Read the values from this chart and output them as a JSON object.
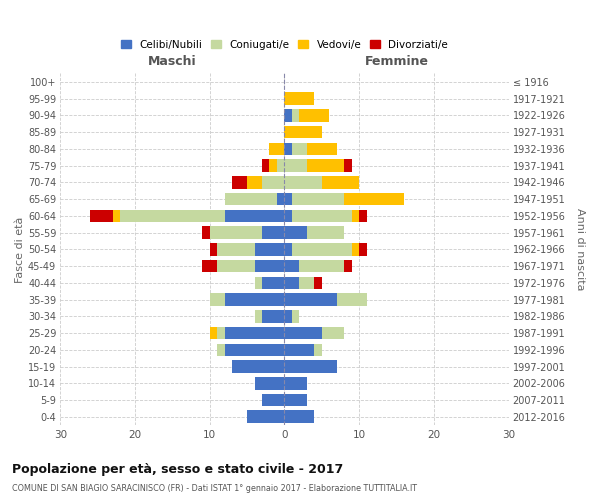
{
  "age_groups": [
    "0-4",
    "5-9",
    "10-14",
    "15-19",
    "20-24",
    "25-29",
    "30-34",
    "35-39",
    "40-44",
    "45-49",
    "50-54",
    "55-59",
    "60-64",
    "65-69",
    "70-74",
    "75-79",
    "80-84",
    "85-89",
    "90-94",
    "95-99",
    "100+"
  ],
  "birth_years": [
    "2012-2016",
    "2007-2011",
    "2002-2006",
    "1997-2001",
    "1992-1996",
    "1987-1991",
    "1982-1986",
    "1977-1981",
    "1972-1976",
    "1967-1971",
    "1962-1966",
    "1957-1961",
    "1952-1956",
    "1947-1951",
    "1942-1946",
    "1937-1941",
    "1932-1936",
    "1927-1931",
    "1922-1926",
    "1917-1921",
    "≤ 1916"
  ],
  "colors": {
    "celibi": "#4472c4",
    "coniugati": "#c5d9a0",
    "vedovi": "#ffc000",
    "divorziati": "#cc0000"
  },
  "maschi": {
    "celibi": [
      5,
      3,
      4,
      7,
      8,
      8,
      3,
      8,
      3,
      4,
      4,
      3,
      8,
      1,
      0,
      0,
      0,
      0,
      0,
      0,
      0
    ],
    "coniugati": [
      0,
      0,
      0,
      0,
      1,
      1,
      1,
      2,
      1,
      5,
      5,
      7,
      14,
      7,
      3,
      1,
      0,
      0,
      0,
      0,
      0
    ],
    "vedovi": [
      0,
      0,
      0,
      0,
      0,
      1,
      0,
      0,
      0,
      0,
      0,
      0,
      1,
      0,
      2,
      1,
      2,
      0,
      0,
      0,
      0
    ],
    "divorziati": [
      0,
      0,
      0,
      0,
      0,
      0,
      0,
      0,
      0,
      2,
      1,
      1,
      3,
      0,
      2,
      1,
      0,
      0,
      0,
      0,
      0
    ]
  },
  "femmine": {
    "celibi": [
      4,
      3,
      3,
      7,
      4,
      5,
      1,
      7,
      2,
      2,
      1,
      3,
      1,
      1,
      0,
      0,
      1,
      0,
      1,
      0,
      0
    ],
    "coniugati": [
      0,
      0,
      0,
      0,
      1,
      3,
      1,
      4,
      2,
      6,
      8,
      5,
      8,
      7,
      5,
      3,
      2,
      0,
      1,
      0,
      0
    ],
    "vedovi": [
      0,
      0,
      0,
      0,
      0,
      0,
      0,
      0,
      0,
      0,
      1,
      0,
      1,
      8,
      5,
      5,
      4,
      5,
      4,
      4,
      0
    ],
    "divorziati": [
      0,
      0,
      0,
      0,
      0,
      0,
      0,
      0,
      1,
      1,
      1,
      0,
      1,
      0,
      0,
      1,
      0,
      0,
      0,
      0,
      0
    ]
  },
  "xlim": 30,
  "title": "Popolazione per età, sesso e stato civile - 2017",
  "subtitle": "COMUNE DI SAN BIAGIO SARACINISCO (FR) - Dati ISTAT 1° gennaio 2017 - Elaborazione TUTTITALIA.IT",
  "xlabel_left": "Maschi",
  "xlabel_right": "Femmine",
  "ylabel_left": "Fasce di età",
  "ylabel_right": "Anni di nascita",
  "legend_labels": [
    "Celibi/Nubili",
    "Coniugati/e",
    "Vedovi/e",
    "Divorziati/e"
  ]
}
